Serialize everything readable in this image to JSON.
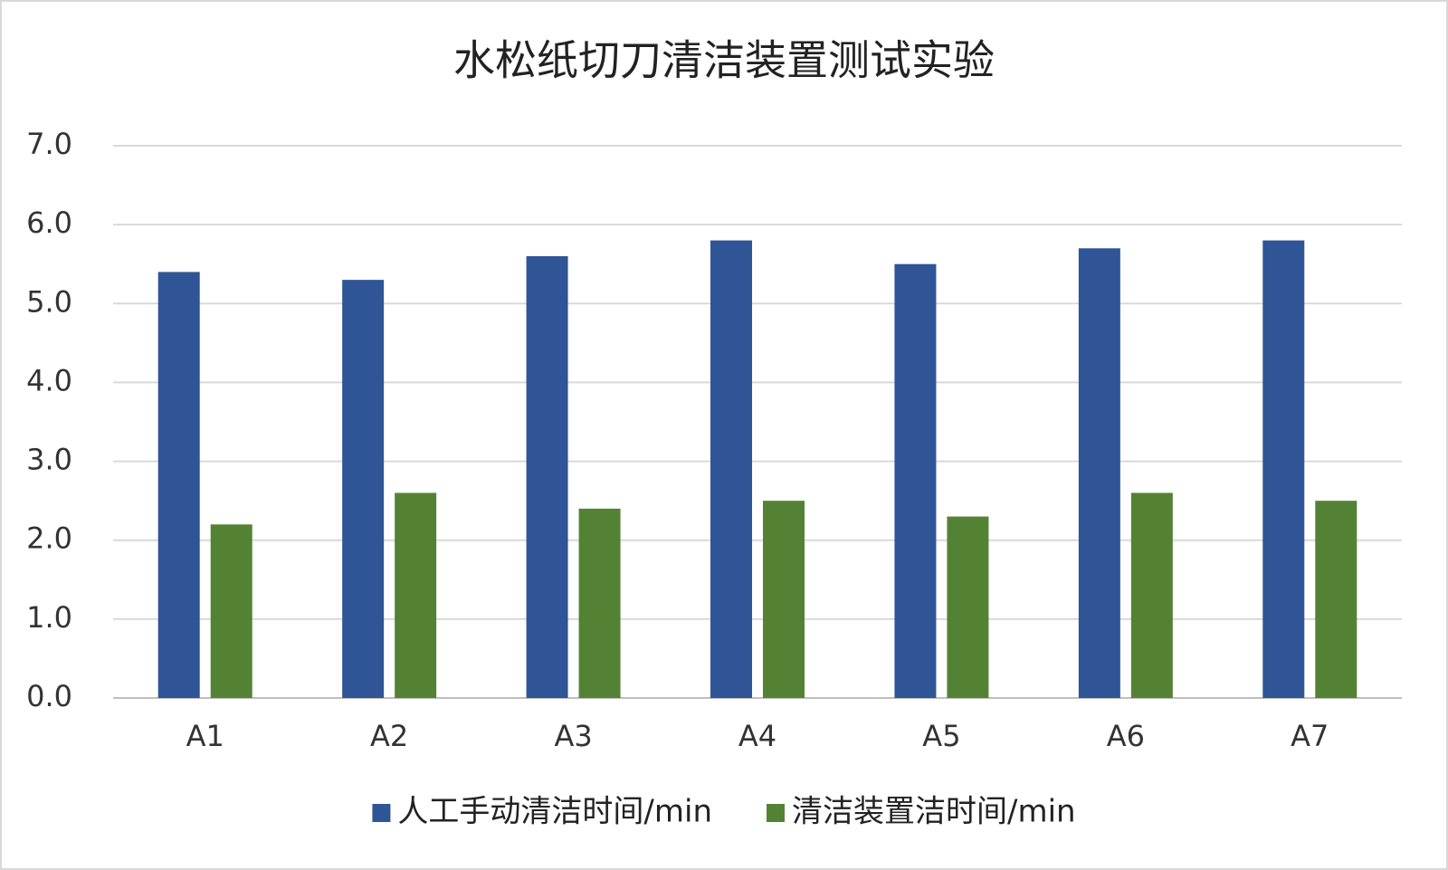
{
  "chart_data": {
    "type": "bar",
    "title": "水松纸切刀清洁装置测试实验",
    "categories": [
      "A1",
      "A2",
      "A3",
      "A4",
      "A5",
      "A6",
      "A7"
    ],
    "series": [
      {
        "name": "人工手动清洁时间/min",
        "color": "#2f5597",
        "values": [
          5.4,
          5.3,
          5.6,
          5.8,
          5.5,
          5.7,
          5.8
        ]
      },
      {
        "name": "清洁装置洁时间/min",
        "color": "#548235",
        "values": [
          2.2,
          2.6,
          2.4,
          2.5,
          2.3,
          2.6,
          2.5
        ]
      }
    ],
    "ylim": [
      0,
      7
    ],
    "yticks": [
      {
        "value": 0,
        "label": "0.0"
      },
      {
        "value": 1,
        "label": "1.0"
      },
      {
        "value": 2,
        "label": "2.0"
      },
      {
        "value": 3,
        "label": "3.0"
      },
      {
        "value": 4,
        "label": "4.0"
      },
      {
        "value": 5,
        "label": "5.0"
      },
      {
        "value": 6,
        "label": "6.0"
      },
      {
        "value": 7,
        "label": "7.0"
      }
    ],
    "grid": true,
    "legend": "bottom"
  }
}
